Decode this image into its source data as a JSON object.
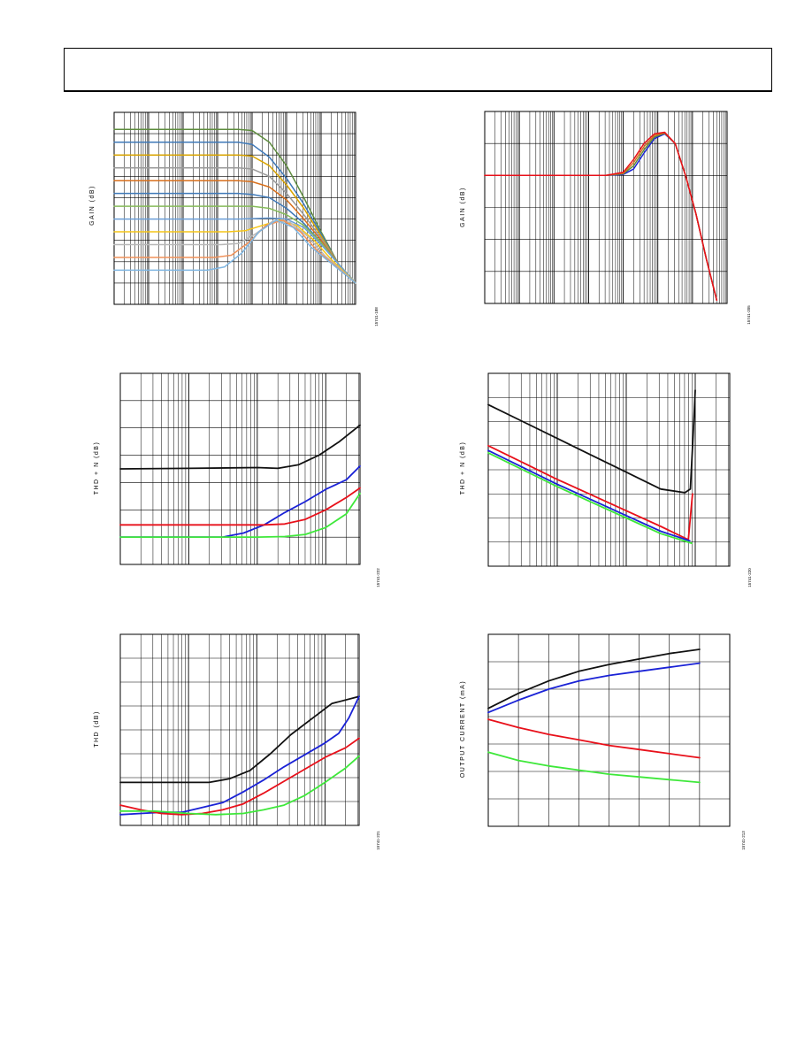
{
  "header": {
    "title": ""
  },
  "colors": {
    "black": "#111111",
    "red": "#e8101a",
    "blue": "#1a22d6",
    "green": "#3ee83a"
  },
  "charts": [
    {
      "id": "p1",
      "ylabel": "GAIN (dB)",
      "figure_id": "15741-188"
    },
    {
      "id": "p2",
      "ylabel": "GAIN (dB)",
      "figure_id": "15741-205"
    },
    {
      "id": "p3",
      "ylabel": "THD + N (dB)",
      "figure_id": "15741-222"
    },
    {
      "id": "p4",
      "ylabel": "THD + N (dB)",
      "figure_id": "15741-220"
    },
    {
      "id": "p5",
      "ylabel": "THD (dB)",
      "figure_id": "15741-221"
    },
    {
      "id": "p6",
      "ylabel": "OUTPUT CURRENT (mA)",
      "figure_id": "15741-213"
    }
  ],
  "chart_data": [
    {
      "id": "p1",
      "type": "line",
      "xscale": "log",
      "yscale": "linear",
      "ylabel": "GAIN (dB)",
      "grid": true,
      "xlim": [
        0,
        7
      ],
      "ylim": [
        0,
        9
      ],
      "series": [
        {
          "color": "#5e8c3e",
          "x": [
            0,
            3.6,
            4.0,
            4.5,
            5.0,
            5.5,
            6.0,
            6.5,
            7.0
          ],
          "y": [
            8.2,
            8.2,
            8.15,
            7.6,
            6.5,
            5.0,
            3.4,
            1.9,
            1.0
          ]
        },
        {
          "color": "#3f79b8",
          "x": [
            0,
            3.6,
            4.0,
            4.5,
            5.0,
            5.5,
            6.0,
            6.5,
            7.0
          ],
          "y": [
            7.6,
            7.6,
            7.5,
            6.9,
            5.9,
            4.7,
            3.3,
            1.9,
            1.0
          ]
        },
        {
          "color": "#d9a400",
          "x": [
            0,
            3.6,
            4.0,
            4.5,
            5.0,
            5.5,
            6.0,
            6.5,
            7.0
          ],
          "y": [
            7.0,
            7.0,
            6.95,
            6.5,
            5.6,
            4.5,
            3.2,
            1.9,
            1.0
          ]
        },
        {
          "color": "#9a9a9a",
          "x": [
            0,
            3.6,
            4.0,
            4.5,
            5.0,
            5.5,
            6.0,
            6.5,
            7.0
          ],
          "y": [
            6.4,
            6.4,
            6.35,
            6.0,
            5.2,
            4.2,
            3.1,
            1.9,
            1.0
          ]
        },
        {
          "color": "#d8711e",
          "x": [
            0,
            3.6,
            4.0,
            4.5,
            5.0,
            5.5,
            6.0,
            6.5,
            7.0
          ],
          "y": [
            5.8,
            5.8,
            5.75,
            5.5,
            4.9,
            4.0,
            3.0,
            1.9,
            1.0
          ]
        },
        {
          "color": "#3f79b8",
          "x": [
            0,
            3.6,
            4.0,
            4.5,
            5.0,
            5.5,
            6.0,
            6.5,
            7.0
          ],
          "y": [
            5.2,
            5.2,
            5.15,
            5.0,
            4.5,
            3.8,
            2.9,
            1.9,
            1.0
          ]
        },
        {
          "color": "#86bb5a",
          "x": [
            0,
            3.6,
            4.0,
            4.5,
            5.0,
            5.5,
            6.0,
            6.5,
            7.0
          ],
          "y": [
            4.6,
            4.6,
            4.6,
            4.5,
            4.2,
            3.7,
            2.9,
            1.9,
            1.0
          ]
        },
        {
          "color": "#6c9fd8",
          "x": [
            0,
            3.6,
            4.0,
            4.5,
            5.0,
            5.5,
            6.0,
            6.5,
            7.0
          ],
          "y": [
            4.0,
            4.0,
            4.02,
            4.05,
            4.0,
            3.6,
            2.8,
            1.9,
            1.0
          ]
        },
        {
          "color": "#f5c518",
          "x": [
            0,
            3.3,
            3.8,
            4.3,
            4.8,
            5.3,
            5.8,
            6.3,
            7.0
          ],
          "y": [
            3.4,
            3.4,
            3.45,
            3.7,
            3.95,
            3.7,
            3.0,
            2.1,
            1.0
          ]
        },
        {
          "color": "#b8b8b8",
          "x": [
            0,
            3.1,
            3.6,
            4.1,
            4.6,
            5.1,
            5.6,
            6.1,
            7.0
          ],
          "y": [
            2.8,
            2.8,
            2.85,
            3.3,
            3.9,
            3.85,
            3.2,
            2.3,
            1.0
          ]
        },
        {
          "color": "#f0925a",
          "x": [
            0,
            2.9,
            3.4,
            3.9,
            4.4,
            4.9,
            5.4,
            5.9,
            7.0
          ],
          "y": [
            2.2,
            2.2,
            2.3,
            2.9,
            3.7,
            3.95,
            3.4,
            2.5,
            1.0
          ]
        },
        {
          "color": "#7fb6e2",
          "x": [
            0,
            2.7,
            3.2,
            3.7,
            4.2,
            4.7,
            5.2,
            5.7,
            7.0
          ],
          "y": [
            1.6,
            1.6,
            1.75,
            2.4,
            3.4,
            3.95,
            3.6,
            2.7,
            1.0
          ]
        }
      ]
    },
    {
      "id": "p2",
      "type": "line",
      "xscale": "log",
      "yscale": "linear",
      "ylabel": "GAIN (dB)",
      "grid": true,
      "xlim": [
        0,
        7
      ],
      "ylim": [
        0,
        6
      ],
      "series": [
        {
          "color": "#1a22d6",
          "x": [
            0,
            3.5,
            4.0,
            4.3,
            4.6,
            4.9,
            5.2,
            5.5,
            5.8,
            6.1,
            6.4,
            6.7
          ],
          "y": [
            4.0,
            4.0,
            4.03,
            4.2,
            4.7,
            5.15,
            5.3,
            5.0,
            4.0,
            2.8,
            1.4,
            0.1
          ]
        },
        {
          "color": "#5e8c3e",
          "x": [
            0,
            3.5,
            4.0,
            4.3,
            4.6,
            4.9,
            5.2,
            5.5,
            5.8,
            6.1,
            6.4,
            6.7
          ],
          "y": [
            4.0,
            4.0,
            4.05,
            4.3,
            4.8,
            5.2,
            5.32,
            5.0,
            4.0,
            2.8,
            1.4,
            0.1
          ]
        },
        {
          "color": "#d8711e",
          "x": [
            0,
            3.5,
            4.0,
            4.3,
            4.6,
            4.9,
            5.2,
            5.5,
            5.8,
            6.1,
            6.4,
            6.7
          ],
          "y": [
            4.0,
            4.0,
            4.07,
            4.4,
            4.9,
            5.25,
            5.33,
            5.0,
            4.0,
            2.8,
            1.4,
            0.1
          ]
        },
        {
          "color": "#e8101a",
          "x": [
            0,
            3.5,
            4.0,
            4.3,
            4.6,
            4.9,
            5.2,
            5.5,
            5.8,
            6.1,
            6.4,
            6.7
          ],
          "y": [
            4.0,
            4.0,
            4.1,
            4.5,
            5.0,
            5.3,
            5.35,
            5.0,
            4.0,
            2.8,
            1.4,
            0.1
          ]
        }
      ]
    },
    {
      "id": "p3",
      "type": "line",
      "xscale": "log",
      "yscale": "linear",
      "ylabel": "THD + N (dB)",
      "grid": true,
      "xlim": [
        0,
        3.5
      ],
      "ylim": [
        0,
        7
      ],
      "series": [
        {
          "color": "#111111",
          "x": [
            0,
            1.0,
            2.0,
            2.3,
            2.6,
            2.9,
            3.2,
            3.5
          ],
          "y": [
            3.5,
            3.52,
            3.55,
            3.52,
            3.65,
            4.0,
            4.5,
            5.1
          ]
        },
        {
          "color": "#1a22d6",
          "x": [
            0,
            1.5,
            1.8,
            2.1,
            2.4,
            2.7,
            3.0,
            3.3,
            3.5
          ],
          "y": [
            1.0,
            1.0,
            1.15,
            1.45,
            1.9,
            2.3,
            2.75,
            3.1,
            3.6
          ]
        },
        {
          "color": "#e8101a",
          "x": [
            0,
            1.0,
            1.8,
            2.1,
            2.4,
            2.7,
            3.0,
            3.3,
            3.5
          ],
          "y": [
            1.45,
            1.45,
            1.45,
            1.45,
            1.48,
            1.65,
            2.0,
            2.45,
            2.8
          ]
        },
        {
          "color": "#3ee83a",
          "x": [
            0,
            1.0,
            2.0,
            2.4,
            2.7,
            3.0,
            3.3,
            3.5
          ],
          "y": [
            1.0,
            1.0,
            1.0,
            1.02,
            1.1,
            1.35,
            1.85,
            2.6
          ]
        }
      ]
    },
    {
      "id": "p4",
      "type": "line",
      "xscale": "log",
      "yscale": "linear",
      "ylabel": "THD + N (dB)",
      "grid": true,
      "xlim": [
        0,
        3.5
      ],
      "ylim": [
        0,
        8
      ],
      "series": [
        {
          "color": "#111111",
          "x": [
            0,
            0.5,
            1.0,
            1.5,
            2.0,
            2.5,
            2.85,
            2.93,
            2.97,
            3.0
          ],
          "y": [
            6.7,
            6.0,
            5.3,
            4.6,
            3.9,
            3.2,
            3.05,
            3.2,
            5.5,
            7.3
          ]
        },
        {
          "color": "#e8101a",
          "x": [
            0,
            0.5,
            1.0,
            1.5,
            2.0,
            2.5,
            2.9,
            2.96
          ],
          "y": [
            5.0,
            4.3,
            3.6,
            2.95,
            2.3,
            1.65,
            1.1,
            3.0
          ]
        },
        {
          "color": "#1a22d6",
          "x": [
            0,
            0.5,
            1.0,
            1.5,
            2.0,
            2.5,
            2.92
          ],
          "y": [
            4.8,
            4.1,
            3.4,
            2.75,
            2.1,
            1.45,
            1.05
          ]
        },
        {
          "color": "#3ee83a",
          "x": [
            0,
            0.5,
            1.0,
            1.5,
            2.0,
            2.5,
            2.95
          ],
          "y": [
            4.7,
            4.0,
            3.3,
            2.65,
            2.0,
            1.35,
            0.95
          ]
        }
      ]
    },
    {
      "id": "p5",
      "type": "line",
      "xscale": "log",
      "yscale": "linear",
      "ylabel": "THD (dB)",
      "grid": true,
      "xlim": [
        0,
        3.5
      ],
      "ylim": [
        0,
        8
      ],
      "series": [
        {
          "color": "#111111",
          "x": [
            0,
            1.0,
            1.3,
            1.6,
            1.9,
            2.2,
            2.5,
            2.8,
            3.1,
            3.5
          ],
          "y": [
            1.8,
            1.8,
            1.8,
            1.95,
            2.3,
            3.0,
            3.8,
            4.45,
            5.1,
            5.4
          ]
        },
        {
          "color": "#1a22d6",
          "x": [
            0,
            0.3,
            0.6,
            0.9,
            1.2,
            1.5,
            1.8,
            2.1,
            2.4,
            2.7,
            3.0,
            3.2,
            3.35,
            3.5
          ],
          "y": [
            0.45,
            0.5,
            0.55,
            0.55,
            0.75,
            0.95,
            1.4,
            1.9,
            2.45,
            2.95,
            3.45,
            3.85,
            4.5,
            5.4
          ]
        },
        {
          "color": "#e8101a",
          "x": [
            0,
            0.3,
            0.6,
            0.9,
            1.2,
            1.5,
            1.8,
            2.1,
            2.4,
            2.7,
            3.0,
            3.3,
            3.5
          ],
          "y": [
            0.85,
            0.65,
            0.5,
            0.45,
            0.5,
            0.65,
            0.9,
            1.35,
            1.85,
            2.35,
            2.85,
            3.25,
            3.65
          ]
        },
        {
          "color": "#3ee83a",
          "x": [
            0,
            0.5,
            1.0,
            1.4,
            1.8,
            2.1,
            2.4,
            2.7,
            3.0,
            3.3,
            3.5
          ],
          "y": [
            0.6,
            0.6,
            0.5,
            0.45,
            0.5,
            0.65,
            0.85,
            1.25,
            1.8,
            2.4,
            2.9
          ]
        }
      ]
    },
    {
      "id": "p6",
      "type": "line",
      "xscale": "linear",
      "yscale": "linear",
      "ylabel": "OUTPUT CURRENT (mA)",
      "grid": true,
      "xlim": [
        0,
        8
      ],
      "ylim": [
        0,
        7
      ],
      "series": [
        {
          "color": "#111111",
          "x": [
            0,
            1,
            2,
            3,
            4,
            5,
            6,
            7
          ],
          "y": [
            4.3,
            4.85,
            5.3,
            5.65,
            5.9,
            6.1,
            6.3,
            6.45
          ]
        },
        {
          "color": "#1a22d6",
          "x": [
            0,
            1,
            2,
            3,
            4,
            5,
            6,
            7
          ],
          "y": [
            4.15,
            4.6,
            5.0,
            5.3,
            5.5,
            5.65,
            5.8,
            5.95
          ]
        },
        {
          "color": "#e8101a",
          "x": [
            0,
            1,
            2,
            3,
            4,
            5,
            6,
            7
          ],
          "y": [
            3.9,
            3.6,
            3.35,
            3.15,
            2.95,
            2.8,
            2.65,
            2.5
          ]
        },
        {
          "color": "#3ee83a",
          "x": [
            0,
            1,
            2,
            3,
            4,
            5,
            6,
            7
          ],
          "y": [
            2.7,
            2.4,
            2.2,
            2.05,
            1.9,
            1.8,
            1.7,
            1.6
          ]
        }
      ]
    }
  ]
}
